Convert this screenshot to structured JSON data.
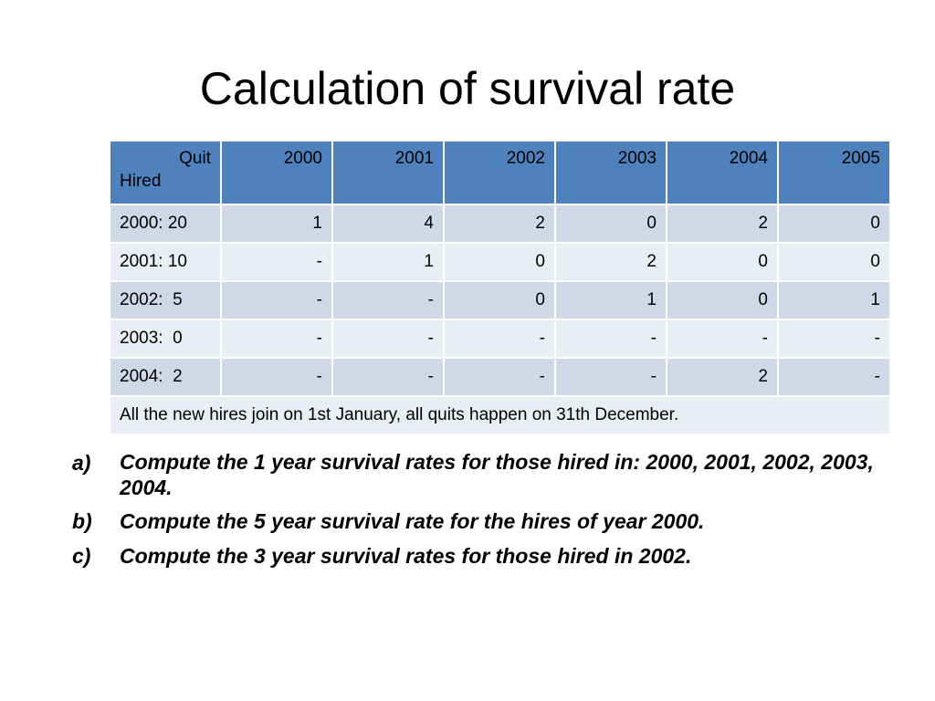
{
  "slide": {
    "title": "Calculation of survival rate"
  },
  "table": {
    "corner": {
      "top": "Quit",
      "bottom": "Hired"
    },
    "years": [
      "2000",
      "2001",
      "2002",
      "2003",
      "2004",
      "2005"
    ],
    "rows": [
      {
        "label": "2000: 20",
        "cells": [
          "1",
          "4",
          "2",
          "0",
          "2",
          "0"
        ]
      },
      {
        "label": "2001: 10",
        "cells": [
          "-",
          "1",
          "0",
          "2",
          "0",
          "0"
        ]
      },
      {
        "label": "2002:  5",
        "cells": [
          "-",
          "-",
          "0",
          "1",
          "0",
          "1"
        ]
      },
      {
        "label": "2003:  0",
        "cells": [
          "-",
          "-",
          "-",
          "-",
          "-",
          "-"
        ]
      },
      {
        "label": "2004:  2",
        "cells": [
          "-",
          "-",
          "-",
          "-",
          "2",
          "-"
        ]
      }
    ],
    "note": "All the new hires join on 1st January, all quits happen on 31th December."
  },
  "questions": [
    {
      "marker": "a)",
      "text": "Compute the 1 year survival rates for those hired in: 2000, 2001, 2002, 2003, 2004."
    },
    {
      "marker": "b)",
      "text": "Compute the 5 year survival rate for the hires of year 2000."
    },
    {
      "marker": "c)",
      "text": "Compute the 3 year survival rates for those hired in 2002."
    }
  ]
}
